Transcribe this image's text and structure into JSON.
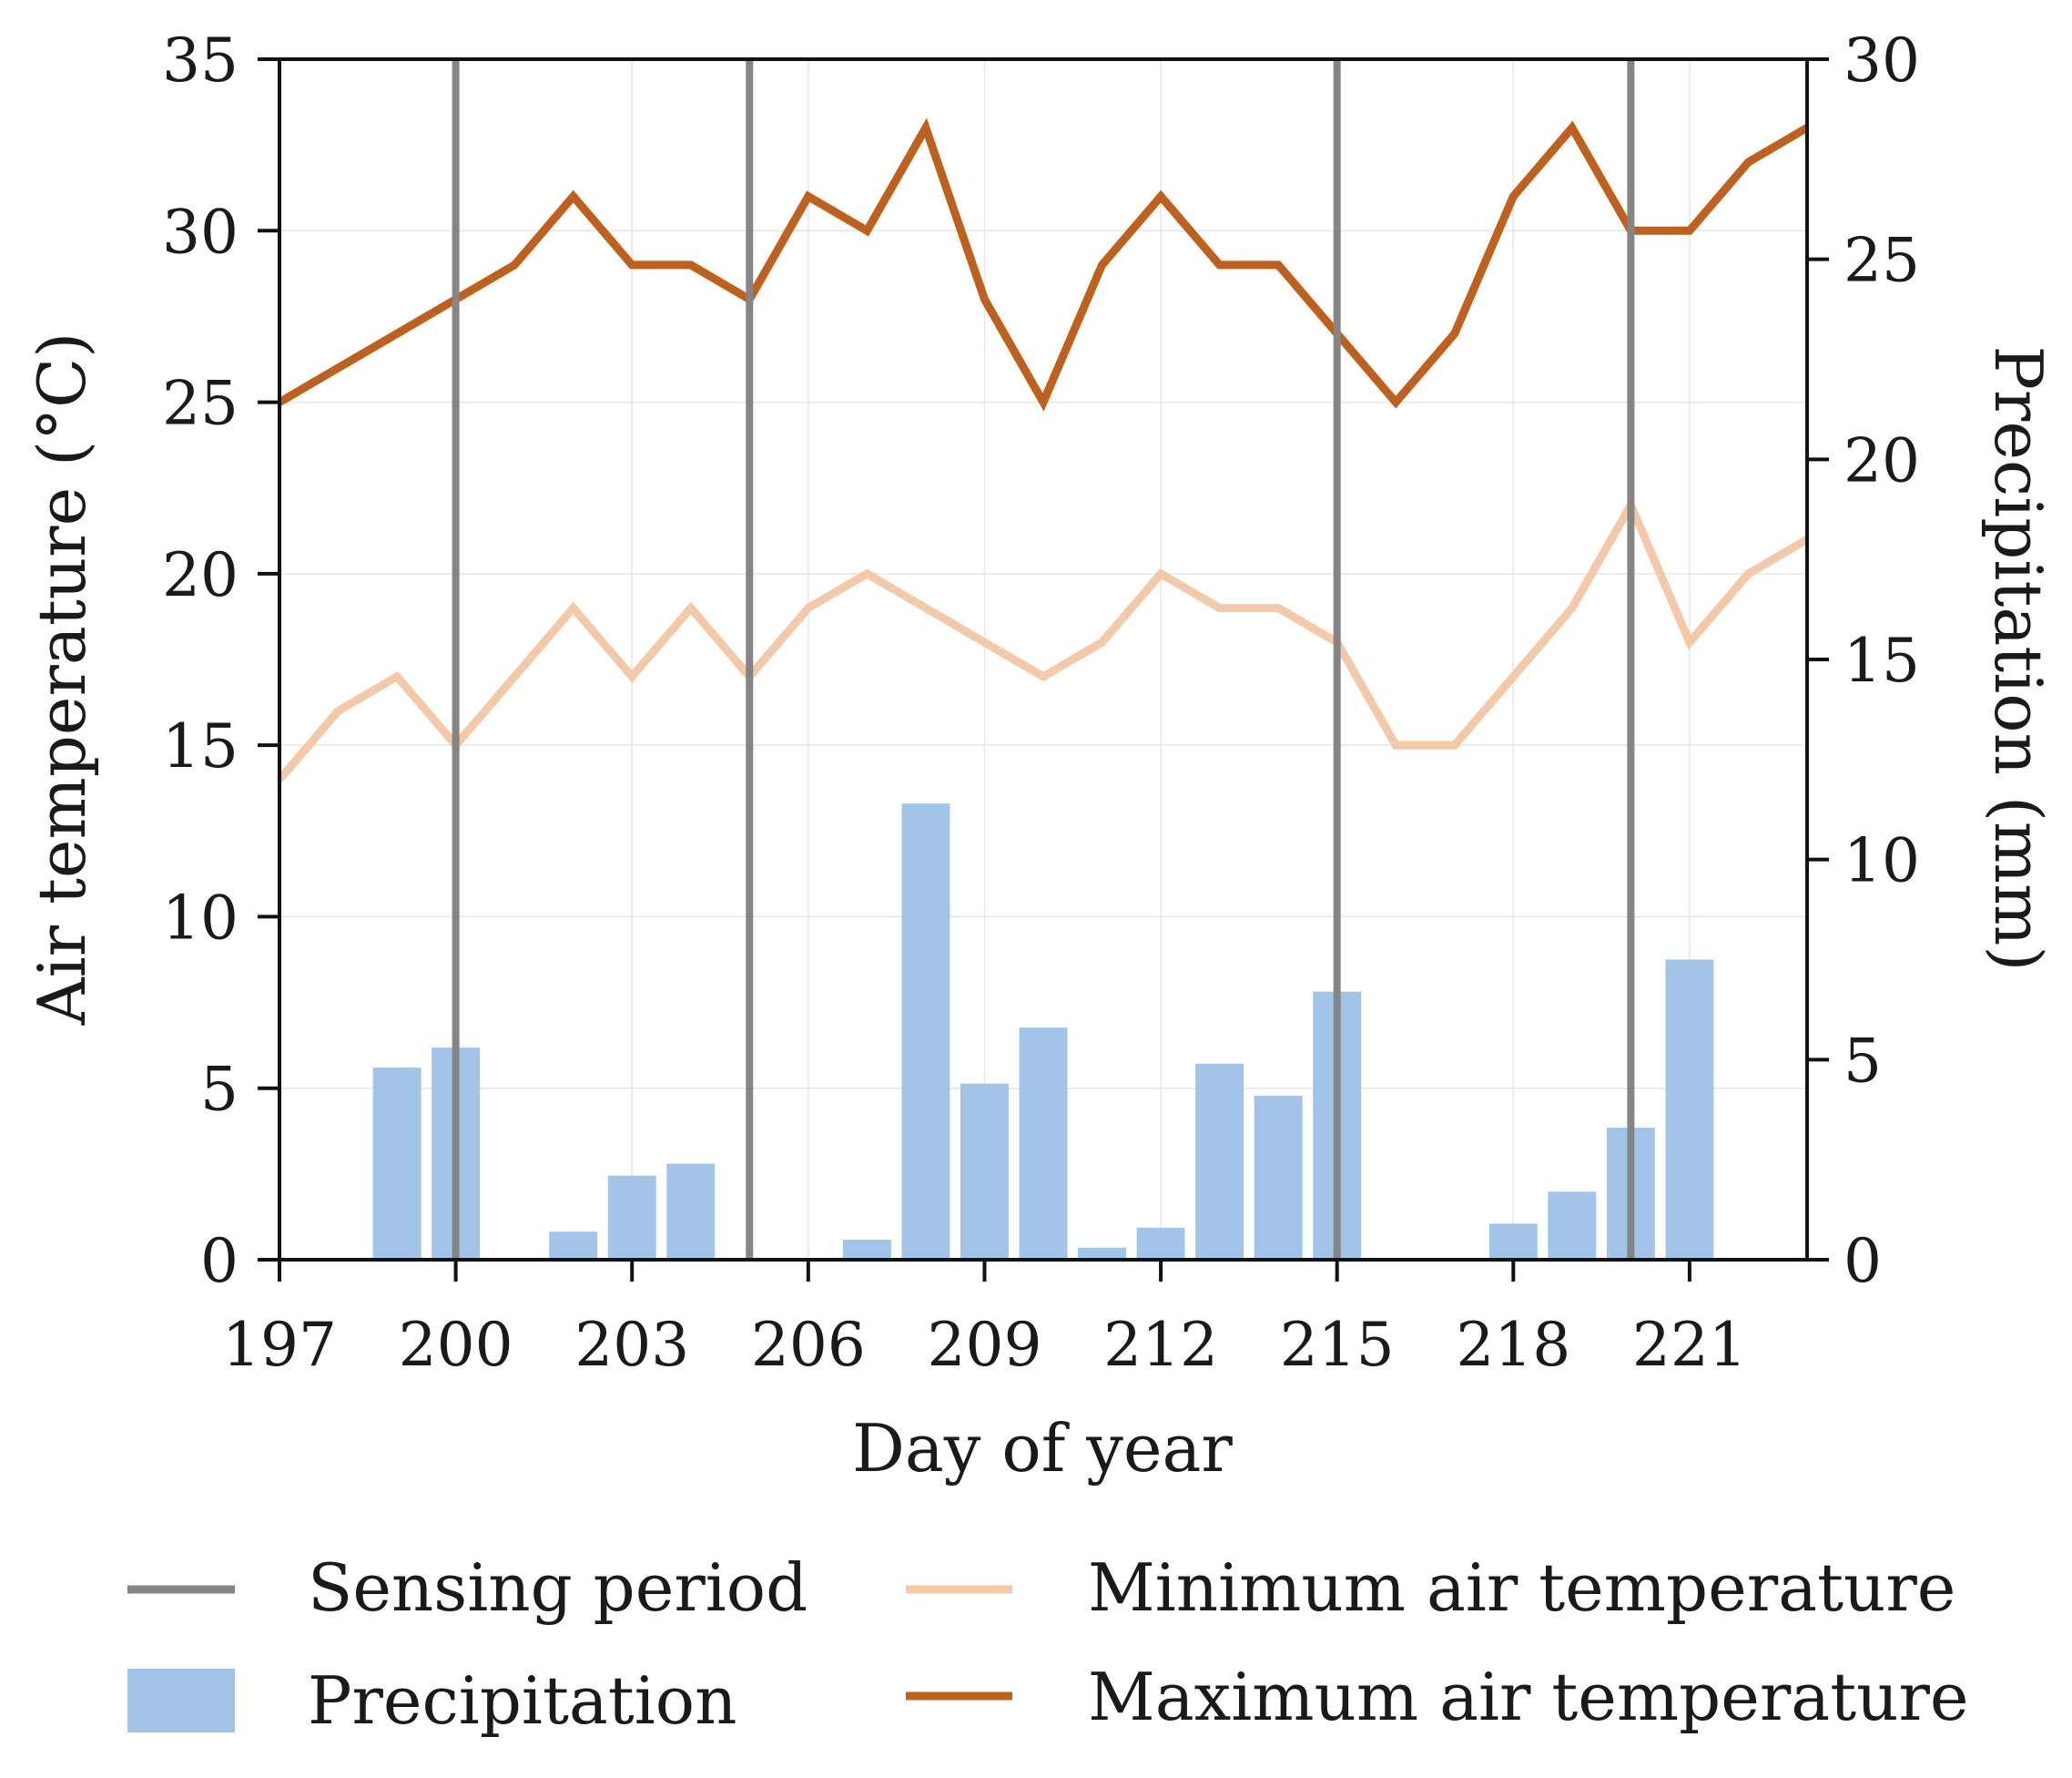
{
  "chart_data": {
    "type": "bar+line",
    "xlabel": "Day of year",
    "ylabel_left": "Air temperature (°C)",
    "ylabel_right": "Precipitation (mm)",
    "xlim": [
      197,
      223
    ],
    "ylim_left": [
      0,
      35
    ],
    "ylim_right": [
      0,
      30
    ],
    "x_ticks": [
      197,
      200,
      203,
      206,
      209,
      212,
      215,
      218,
      221
    ],
    "y_left_ticks": [
      0,
      5,
      10,
      15,
      20,
      25,
      30,
      35
    ],
    "y_right_ticks": [
      0,
      5,
      10,
      15,
      20,
      25,
      30
    ],
    "grid": true,
    "legend_placement": "bottom",
    "sensing_period_days": [
      200,
      205,
      215,
      220
    ],
    "precipitation": {
      "name": "Precipitation",
      "days": [
        199,
        200,
        202,
        203,
        204,
        207,
        208,
        209,
        210,
        211,
        212,
        213,
        214,
        215,
        218,
        219,
        220,
        221
      ],
      "values": [
        4.8,
        5.3,
        0.7,
        2.1,
        2.4,
        0.5,
        11.4,
        4.4,
        5.8,
        0.3,
        0.8,
        4.9,
        4.1,
        6.7,
        0.9,
        1.7,
        3.3,
        7.5
      ]
    },
    "series": [
      {
        "name": "Minimum air temperature",
        "axis": "left",
        "days": [
          197,
          198,
          199,
          200,
          201,
          202,
          203,
          204,
          205,
          206,
          207,
          208,
          209,
          210,
          211,
          212,
          213,
          214,
          215,
          216,
          217,
          218,
          219,
          220,
          221,
          222,
          223
        ],
        "values": [
          14,
          16,
          17,
          15,
          17,
          19,
          17,
          19,
          17,
          19,
          20,
          19,
          18,
          17,
          18,
          20,
          19,
          19,
          18,
          15,
          15,
          17,
          19,
          22,
          18,
          20,
          21
        ]
      },
      {
        "name": "Maximum air temperature",
        "axis": "left",
        "days": [
          197,
          198,
          199,
          200,
          201,
          202,
          203,
          204,
          205,
          206,
          207,
          208,
          209,
          210,
          211,
          212,
          213,
          214,
          215,
          216,
          217,
          218,
          219,
          220,
          221,
          222,
          223
        ],
        "values": [
          25,
          26,
          27,
          28,
          29,
          31,
          29,
          29,
          28,
          31,
          30,
          33,
          28,
          25,
          29,
          31,
          29,
          29,
          27,
          25,
          27,
          31,
          33,
          30,
          30,
          32,
          33
        ]
      }
    ],
    "legend": [
      {
        "key": "sensing",
        "label": "Sensing period"
      },
      {
        "key": "tmin",
        "label": "Minimum air temperature"
      },
      {
        "key": "precip",
        "label": "Precipitation"
      },
      {
        "key": "tmax",
        "label": "Maximum air temperature"
      }
    ],
    "colors": {
      "sensing": "#858585",
      "precip": "#a1c4e8",
      "tmin": "#f3c9a8",
      "tmax": "#c0601d",
      "axis": "#111111",
      "grid": "#e6e6e6"
    }
  }
}
